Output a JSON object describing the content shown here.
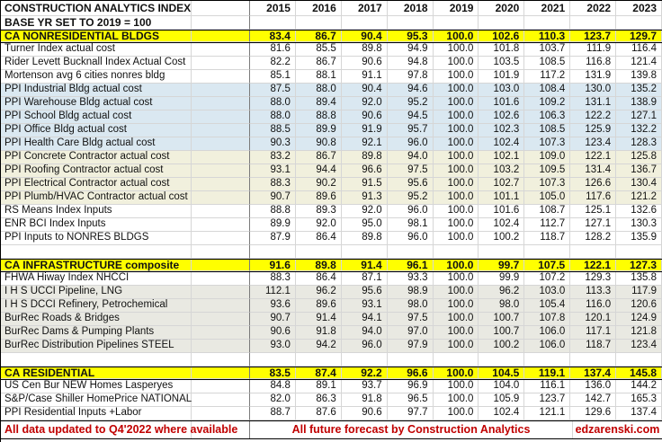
{
  "table": {
    "title": "CONSTRUCTION ANALYTICS INDEX",
    "subtitle": "BASE YR SET TO 2019 = 100",
    "years": [
      "2015",
      "2016",
      "2017",
      "2018",
      "2019",
      "2020",
      "2021",
      "2022",
      "2023"
    ],
    "sections": [
      {
        "header": {
          "label": "CA NONRESIDENTIAL BLDGS",
          "values": [
            "83.4",
            "86.7",
            "90.4",
            "95.3",
            "100.0",
            "102.6",
            "110.3",
            "123.7",
            "129.7"
          ]
        },
        "rows": [
          {
            "label": "Turner Index actual cost",
            "tint": "none",
            "values": [
              "81.6",
              "85.5",
              "89.8",
              "94.9",
              "100.0",
              "101.8",
              "103.7",
              "111.9",
              "116.4"
            ]
          },
          {
            "label": "Rider Levett Bucknall Index Actual Cost",
            "tint": "none",
            "values": [
              "82.2",
              "86.7",
              "90.6",
              "94.8",
              "100.0",
              "103.5",
              "108.5",
              "116.8",
              "121.4"
            ]
          },
          {
            "label": "Mortenson avg 6 cities nonres bldg",
            "tint": "none",
            "values": [
              "85.1",
              "88.1",
              "91.1",
              "97.8",
              "100.0",
              "101.9",
              "117.2",
              "131.9",
              "139.8"
            ]
          },
          {
            "label": "PPI Industrial Bldg actual cost",
            "tint": "blue",
            "values": [
              "87.5",
              "88.0",
              "90.4",
              "94.6",
              "100.0",
              "103.0",
              "108.4",
              "130.0",
              "135.2"
            ]
          },
          {
            "label": "PPI Warehouse Bldg actual cost",
            "tint": "blue",
            "values": [
              "88.0",
              "89.4",
              "92.0",
              "95.2",
              "100.0",
              "101.6",
              "109.2",
              "131.1",
              "138.9"
            ]
          },
          {
            "label": "PPI School Bldg actual cost",
            "tint": "blue",
            "values": [
              "88.0",
              "88.8",
              "90.6",
              "94.5",
              "100.0",
              "102.6",
              "106.3",
              "122.2",
              "127.1"
            ]
          },
          {
            "label": "PPI Office Bldg actual cost",
            "tint": "blue",
            "values": [
              "88.5",
              "89.9",
              "91.9",
              "95.7",
              "100.0",
              "102.3",
              "108.5",
              "125.9",
              "132.2"
            ]
          },
          {
            "label": "PPI Health Care Bldg actual cost",
            "tint": "blue",
            "values": [
              "90.3",
              "90.8",
              "92.1",
              "96.0",
              "100.0",
              "102.4",
              "107.3",
              "123.4",
              "128.3"
            ]
          },
          {
            "label": "PPI Concrete Contractor actual cost",
            "tint": "cream",
            "values": [
              "83.2",
              "86.7",
              "89.8",
              "94.0",
              "100.0",
              "102.1",
              "109.0",
              "122.1",
              "125.8"
            ]
          },
          {
            "label": "PPI Roofing Contractor actual cost",
            "tint": "cream",
            "values": [
              "93.1",
              "94.4",
              "96.6",
              "97.5",
              "100.0",
              "103.2",
              "109.5",
              "131.4",
              "136.7"
            ]
          },
          {
            "label": "PPI Electrical Contractor actual cost",
            "tint": "cream",
            "values": [
              "88.3",
              "90.2",
              "91.5",
              "95.6",
              "100.0",
              "102.7",
              "107.3",
              "126.6",
              "130.4"
            ]
          },
          {
            "label": "PPI Plumb/HVAC Contractor actual cost",
            "tint": "cream",
            "values": [
              "90.7",
              "89.6",
              "91.3",
              "95.2",
              "100.0",
              "101.1",
              "105.0",
              "117.6",
              "121.2"
            ]
          },
          {
            "label": "RS Means Index Inputs",
            "tint": "none",
            "values": [
              "88.8",
              "89.3",
              "92.0",
              "96.0",
              "100.0",
              "101.6",
              "108.7",
              "125.1",
              "132.6"
            ]
          },
          {
            "label": "ENR BCI Index Inputs",
            "tint": "none",
            "values": [
              "89.9",
              "92.0",
              "95.0",
              "98.1",
              "100.0",
              "102.4",
              "112.7",
              "127.1",
              "130.3"
            ]
          },
          {
            "label": "PPI Inputs to NONRES BLDGS",
            "tint": "none",
            "values": [
              "87.9",
              "86.4",
              "89.8",
              "96.0",
              "100.0",
              "100.2",
              "118.7",
              "128.2",
              "135.9"
            ]
          }
        ]
      },
      {
        "header": {
          "label": "CA INFRASTRUCTURE composite",
          "values": [
            "91.6",
            "89.8",
            "91.4",
            "96.1",
            "100.0",
            "99.7",
            "107.5",
            "122.1",
            "127.3"
          ]
        },
        "rows": [
          {
            "label": "FHWA Hiway Index NHCCI",
            "tint": "none",
            "values": [
              "88.3",
              "86.4",
              "87.1",
              "93.3",
              "100.0",
              "99.9",
              "107.2",
              "129.3",
              "135.8"
            ]
          },
          {
            "label": "I H S UCCI Pipeline, LNG",
            "tint": "gray",
            "values": [
              "112.1",
              "96.2",
              "95.6",
              "98.9",
              "100.0",
              "96.2",
              "103.0",
              "113.3",
              "117.9"
            ]
          },
          {
            "label": "I H S DCCI Refinery, Petrochemical",
            "tint": "gray",
            "values": [
              "93.6",
              "89.6",
              "93.1",
              "98.0",
              "100.0",
              "98.0",
              "105.4",
              "116.0",
              "120.6"
            ]
          },
          {
            "label": "BurRec Roads & Bridges",
            "tint": "gray",
            "values": [
              "90.7",
              "91.4",
              "94.1",
              "97.5",
              "100.0",
              "100.7",
              "107.8",
              "120.1",
              "124.9"
            ]
          },
          {
            "label": "BurRec Dams & Pumping Plants",
            "tint": "gray",
            "values": [
              "90.6",
              "91.8",
              "94.0",
              "97.0",
              "100.0",
              "100.7",
              "106.0",
              "117.1",
              "121.8"
            ]
          },
          {
            "label": "BurRec Distribution Pipelines STEEL",
            "tint": "gray",
            "values": [
              "93.0",
              "94.2",
              "96.0",
              "97.9",
              "100.0",
              "100.2",
              "106.0",
              "118.7",
              "123.4"
            ]
          }
        ]
      },
      {
        "header": {
          "label": "CA RESIDENTIAL",
          "values": [
            "83.5",
            "87.4",
            "92.2",
            "96.6",
            "100.0",
            "104.5",
            "119.1",
            "137.4",
            "145.8"
          ]
        },
        "rows": [
          {
            "label": "US Cen Bur NEW Homes Lasperyes",
            "tint": "none",
            "values": [
              "84.8",
              "89.1",
              "93.7",
              "96.9",
              "100.0",
              "104.0",
              "116.1",
              "136.0",
              "144.2"
            ]
          },
          {
            "label": "S&P/Case Shiller HomePrice NATIONAL",
            "tint": "none",
            "values": [
              "82.0",
              "86.3",
              "91.8",
              "96.5",
              "100.0",
              "105.9",
              "123.7",
              "142.7",
              "165.3"
            ]
          },
          {
            "label": "PPI Residential Inputs  +Labor",
            "tint": "none",
            "values": [
              "88.7",
              "87.6",
              "90.6",
              "97.7",
              "100.0",
              "102.4",
              "121.1",
              "129.6",
              "137.4"
            ]
          }
        ]
      }
    ],
    "footer": {
      "left": "All data updated to Q4'2022 where available",
      "center": "All future forecast by Construction Analytics",
      "right": "edzarenski.com"
    },
    "colors": {
      "section_highlight": "#FFFF00",
      "ppi_building_tint": "#DAE8F1",
      "ppi_contractor_tint": "#F1F0DD",
      "infrastructure_tint": "#E9E9E2",
      "footer_text": "#C00000",
      "gridline": "#D6D6D6"
    }
  }
}
